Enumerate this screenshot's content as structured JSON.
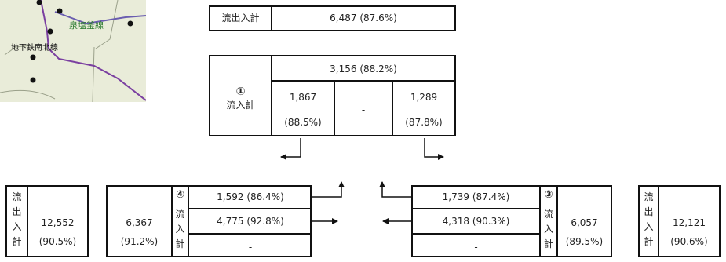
{
  "map": {
    "line_label_1": "泉塩釜線",
    "line_label_2": "地下鉄南北線"
  },
  "top_total": {
    "label": "流出入計",
    "value": "6,487 (87.6%)"
  },
  "node1": {
    "number": "①",
    "label": "流入計",
    "total": "3,156 (88.2%)",
    "left_value": "1,867",
    "left_pct": "(88.5%)",
    "middle": "-",
    "right_value": "1,289",
    "right_pct": "(87.8%)"
  },
  "left_total": {
    "label": [
      "流",
      "出",
      "入",
      "計"
    ],
    "value": "12,552",
    "pct": "(90.5%)"
  },
  "node4": {
    "total_value": "6,367",
    "total_pct": "(91.2%)",
    "number": "④",
    "label": [
      "流",
      "入",
      "計"
    ],
    "row1": "1,592 (86.4%)",
    "row2": "4,775 (92.8%)",
    "row3": "-"
  },
  "node3": {
    "row1": "1,739 (87.4%)",
    "row2": "4,318 (90.3%)",
    "row3": "-",
    "number": "③",
    "label": [
      "流",
      "入",
      "計"
    ],
    "total_value": "6,057",
    "total_pct": "(89.5%)"
  },
  "right_total": {
    "label": [
      "流",
      "出",
      "入",
      "計"
    ],
    "value": "12,121",
    "pct": "(90.6%)"
  }
}
